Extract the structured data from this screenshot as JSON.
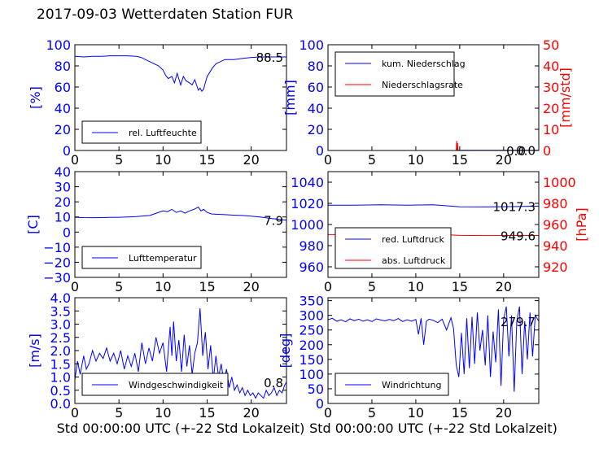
{
  "page_title": "2017-09-03 Wetterdaten Station FUR",
  "colors": {
    "primary": "#0000ff",
    "secondary": "#ff0000"
  },
  "chart_data": [
    {
      "id": "humidity",
      "type": "line",
      "ylabel": "[%]",
      "xlabel": "",
      "xlim": [
        0,
        24
      ],
      "ylim": [
        0,
        100
      ],
      "x_ticks": [
        "0",
        "5",
        "10",
        "15",
        "20"
      ],
      "y_ticks": [
        "0",
        "20",
        "40",
        "60",
        "80",
        "100"
      ],
      "last_value_label": "88.5",
      "legend": {
        "placement": "lower-left",
        "entries": [
          {
            "label": "rel. Luftfeuchte",
            "color": "#0000ff"
          }
        ]
      },
      "series": [
        {
          "name": "rel. Luftfeuchte",
          "color": "#0000ff",
          "x": [
            0,
            1,
            2,
            3,
            4,
            5,
            6,
            7,
            7.5,
            8,
            8.5,
            9,
            9.5,
            10,
            10.3,
            10.6,
            11,
            11.3,
            11.6,
            12,
            12.3,
            12.6,
            13,
            13.3,
            13.6,
            14,
            14.2,
            14.4,
            14.6,
            14.8,
            15,
            15.3,
            15.6,
            16,
            16.5,
            17,
            18,
            19,
            20,
            21,
            22,
            23,
            24
          ],
          "y": [
            89,
            88.5,
            89,
            89,
            89.5,
            89.5,
            89.5,
            89,
            88,
            86,
            84,
            82,
            80,
            76,
            71,
            68,
            70,
            64,
            73,
            62,
            70,
            66,
            64,
            62,
            67,
            57,
            59,
            56,
            58,
            64,
            70,
            74,
            78,
            82,
            84,
            86,
            86,
            87,
            88,
            88.5,
            88.5,
            88.5,
            88.5
          ]
        }
      ]
    },
    {
      "id": "precipitation",
      "type": "line",
      "ylabel": "[mm]",
      "ylabel_right": "[mm/std]",
      "xlabel": "",
      "xlim": [
        0,
        24
      ],
      "ylim": [
        0,
        100
      ],
      "ylim_right": [
        0,
        50
      ],
      "x_ticks": [
        "0",
        "5",
        "10",
        "15",
        "20"
      ],
      "y_ticks": [
        "0",
        "20",
        "40",
        "60",
        "80",
        "100"
      ],
      "y_ticks_right": [
        "0",
        "10",
        "20",
        "30",
        "40",
        "50"
      ],
      "last_value_label": "0.0",
      "last_value_label_right": "0.0",
      "legend": {
        "placement": "upper-left",
        "entries": [
          {
            "label": "kum. Niederschlag",
            "color": "#0000ff"
          },
          {
            "label": "Niederschlagsrate",
            "color": "#ff0000"
          }
        ]
      },
      "series": [
        {
          "name": "kum. Niederschlag",
          "color": "#0000ff",
          "axis": "left",
          "x": [
            0,
            14.7,
            14.8,
            24
          ],
          "y": [
            0,
            0,
            0.2,
            0.2
          ]
        },
        {
          "name": "Niederschlagsrate",
          "color": "#ff0000",
          "axis": "right",
          "x": [
            0,
            14.6,
            14.65,
            14.7,
            14.75,
            14.8,
            24
          ],
          "y": [
            0,
            0,
            4.5,
            0.2,
            3.5,
            0,
            0
          ]
        }
      ]
    },
    {
      "id": "temperature",
      "type": "line",
      "ylabel": "[C]",
      "xlabel": "",
      "xlim": [
        0,
        24
      ],
      "ylim": [
        -30,
        40
      ],
      "x_ticks": [
        "0",
        "5",
        "10",
        "15",
        "20"
      ],
      "y_ticks": [
        "−30",
        "−20",
        "−10",
        "0",
        "10",
        "20",
        "30",
        "40"
      ],
      "last_value_label": "7.9",
      "legend": {
        "placement": "lower-left",
        "entries": [
          {
            "label": "Lufttemperatur",
            "color": "#0000ff"
          }
        ]
      },
      "series": [
        {
          "name": "Lufttemperatur",
          "color": "#0000ff",
          "x": [
            0,
            1,
            2,
            3,
            4,
            5,
            6,
            7,
            8,
            8.5,
            9,
            9.5,
            10,
            10.5,
            11,
            11.5,
            12,
            12.5,
            13,
            13.5,
            14,
            14.3,
            14.6,
            15,
            15.5,
            16,
            17,
            18,
            19,
            20,
            21,
            22,
            23,
            24
          ],
          "y": [
            9.8,
            9.6,
            9.5,
            9.6,
            9.7,
            9.8,
            10,
            10.2,
            10.8,
            11,
            12,
            13,
            14,
            13.5,
            15,
            13,
            14,
            12.5,
            14,
            15,
            16.5,
            14,
            15,
            13,
            12,
            11.8,
            11.5,
            11.2,
            11,
            10.5,
            10,
            9.2,
            8.5,
            7.9
          ]
        }
      ]
    },
    {
      "id": "pressure",
      "type": "line",
      "ylabel": "",
      "ylabel_right": "[hPa]",
      "xlabel": "",
      "xlim": [
        0,
        24
      ],
      "ylim": [
        950,
        1050
      ],
      "ylim_right": [
        910,
        1010
      ],
      "x_ticks": [
        "0",
        "5",
        "10",
        "15",
        "20"
      ],
      "y_ticks": [
        "960",
        "980",
        "1000",
        "1020",
        "1040"
      ],
      "y_ticks_right": [
        "920",
        "940",
        "960",
        "980",
        "1000"
      ],
      "last_value_label": "1017.3",
      "last_value_label_right": "949.6",
      "legend": {
        "placement": "lower-left",
        "entries": [
          {
            "label": "red. Luftdruck",
            "color": "#0000ff"
          },
          {
            "label": "abs. Luftdruck",
            "color": "#ff0000"
          }
        ]
      },
      "series": [
        {
          "name": "red. Luftdruck",
          "color": "#0000ff",
          "axis": "left",
          "x": [
            0,
            3,
            6,
            9,
            12,
            15,
            18,
            21,
            24
          ],
          "y": [
            1018.2,
            1018.2,
            1018.6,
            1018.3,
            1018.6,
            1016.8,
            1016.6,
            1016.9,
            1017.3
          ]
        },
        {
          "name": "abs. Luftdruck",
          "color": "#ff0000",
          "axis": "right",
          "x": [
            0,
            3,
            6,
            9,
            12,
            15,
            18,
            21,
            24
          ],
          "y": [
            950.5,
            950.5,
            950.9,
            950.8,
            951,
            949.7,
            949.5,
            949.6,
            949.6
          ]
        }
      ]
    },
    {
      "id": "windspeed",
      "type": "line",
      "ylabel": "[m/s]",
      "xlabel": "Std 00:00:00 UTC (+-22 Std Lokalzeit)",
      "xlim": [
        0,
        24
      ],
      "ylim": [
        0,
        4
      ],
      "x_ticks": [
        "0",
        "5",
        "10",
        "15",
        "20"
      ],
      "y_ticks": [
        "0.0",
        "0.5",
        "1.0",
        "1.5",
        "2.0",
        "2.5",
        "3.0",
        "3.5",
        "4.0"
      ],
      "last_value_label": "0.8",
      "legend": {
        "placement": "lower-left",
        "entries": [
          {
            "label": "Windgeschwindigkeit",
            "color": "#0000ff"
          }
        ]
      },
      "series": [
        {
          "name": "Windgeschwindigkeit",
          "color": "#0000ff",
          "x": [
            0,
            0.3,
            0.6,
            1,
            1.3,
            1.6,
            2,
            2.4,
            2.8,
            3.2,
            3.6,
            4,
            4.4,
            4.8,
            5.2,
            5.6,
            6,
            6.4,
            6.8,
            7.2,
            7.6,
            8,
            8.4,
            8.8,
            9.2,
            9.6,
            10,
            10.4,
            10.8,
            11,
            11.2,
            11.5,
            11.8,
            12.1,
            12.4,
            12.7,
            13,
            13.3,
            13.6,
            13.9,
            14.2,
            14.5,
            14.8,
            15.1,
            15.4,
            15.7,
            16,
            16.3,
            16.6,
            16.9,
            17.2,
            17.5,
            17.8,
            18.1,
            18.4,
            18.7,
            19,
            19.3,
            19.6,
            19.9,
            20.2,
            20.5,
            20.8,
            21.1,
            21.4,
            21.7,
            22,
            22.3,
            22.6,
            22.9,
            23.2,
            23.5,
            23.8,
            24
          ],
          "y": [
            0.9,
            1.6,
            1.1,
            1.8,
            1.3,
            1.5,
            2.0,
            1.6,
            1.9,
            1.7,
            2.1,
            1.6,
            1.9,
            1.5,
            2.0,
            1.3,
            1.8,
            1.4,
            1.9,
            1.2,
            2.3,
            1.5,
            2.1,
            1.6,
            2.5,
            1.9,
            2.3,
            1.2,
            2.9,
            1.8,
            3.1,
            1.6,
            2.4,
            1.2,
            2.6,
            1.4,
            2.2,
            1.1,
            1.9,
            2.3,
            3.6,
            1.8,
            2.7,
            1.3,
            2.2,
            0.9,
            1.8,
            1.0,
            1.5,
            0.8,
            1.3,
            0.6,
            1.0,
            0.5,
            0.7,
            0.4,
            0.6,
            0.3,
            0.5,
            0.3,
            0.4,
            0.2,
            0.4,
            0.3,
            0.2,
            0.5,
            0.3,
            0.4,
            0.6,
            0.3,
            0.5,
            0.4,
            0.7,
            0.8
          ]
        }
      ]
    },
    {
      "id": "winddirection",
      "type": "line",
      "ylabel": "[deg]",
      "xlabel": "Std 00:00:00 UTC (+-22 Std Lokalzeit)",
      "xlim": [
        0,
        24
      ],
      "ylim": [
        0,
        360
      ],
      "x_ticks": [
        "0",
        "5",
        "10",
        "15",
        "20"
      ],
      "y_ticks": [
        "0",
        "50",
        "100",
        "150",
        "200",
        "250",
        "300",
        "350"
      ],
      "last_value_label": "279.7",
      "legend": {
        "placement": "lower-left",
        "entries": [
          {
            "label": "Windrichtung",
            "color": "#0000ff"
          }
        ]
      },
      "series": [
        {
          "name": "Windrichtung",
          "color": "#0000ff",
          "x": [
            0,
            0.5,
            1,
            1.5,
            2,
            2.5,
            3,
            3.5,
            4,
            4.5,
            5,
            5.5,
            6,
            6.5,
            7,
            7.5,
            8,
            8.5,
            9,
            9.5,
            10,
            10.3,
            10.6,
            10.9,
            11.2,
            11.5,
            12,
            12.5,
            13,
            13.5,
            14,
            14.3,
            14.6,
            14.9,
            15.2,
            15.5,
            15.8,
            16.1,
            16.4,
            16.7,
            17,
            17.3,
            17.6,
            17.9,
            18.2,
            18.5,
            18.8,
            19.1,
            19.4,
            19.7,
            20,
            20.3,
            20.6,
            20.9,
            21.2,
            21.5,
            21.8,
            22.1,
            22.4,
            22.7,
            23,
            23.3,
            23.6,
            24
          ],
          "y": [
            285,
            290,
            280,
            285,
            278,
            288,
            282,
            287,
            280,
            285,
            279,
            288,
            284,
            281,
            286,
            282,
            289,
            279,
            285,
            280,
            286,
            235,
            290,
            200,
            280,
            287,
            283,
            275,
            287,
            250,
            292,
            255,
            130,
            90,
            240,
            100,
            290,
            120,
            295,
            135,
            310,
            180,
            250,
            130,
            300,
            90,
            245,
            140,
            320,
            60,
            285,
            330,
            160,
            300,
            40,
            280,
            330,
            100,
            280,
            150,
            310,
            160,
            300,
            280
          ]
        }
      ]
    }
  ]
}
